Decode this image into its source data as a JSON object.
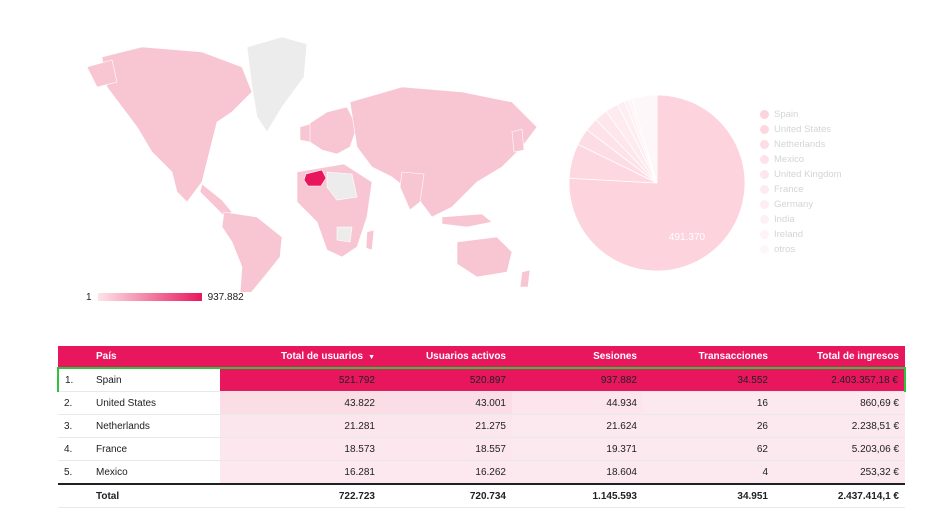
{
  "chart_data": [
    {
      "type": "map",
      "highlighted_region": "Spain",
      "scale": {
        "min": "1",
        "max": "937.882"
      },
      "colors": {
        "low": "#fde4ea",
        "high": "#e8175d",
        "no_data": "#ececec"
      }
    },
    {
      "type": "pie",
      "slice_label": "491.370",
      "legend": [
        "Spain",
        "United States",
        "Netherlands",
        "Mexico",
        "United Kingdom",
        "France",
        "Germany",
        "India",
        "Ireland",
        "otros"
      ],
      "slices": [
        {
          "label": "Spain",
          "value": 491370,
          "color": "#fdd3dd"
        },
        {
          "label": "United States",
          "value": 41270,
          "color": "#fdd8e1"
        },
        {
          "label": "Netherlands",
          "value": 20040,
          "color": "#fddde5"
        },
        {
          "label": "Mexico",
          "value": 15900,
          "color": "#fde2e9"
        },
        {
          "label": "United Kingdom",
          "value": 15600,
          "color": "#fde6ec"
        },
        {
          "label": "France",
          "value": 15500,
          "color": "#feebf0"
        },
        {
          "label": "Germany",
          "value": 9000,
          "color": "#feeef2"
        },
        {
          "label": "India",
          "value": 5000,
          "color": "#fef1f4"
        },
        {
          "label": "Ireland",
          "value": 4000,
          "color": "#fef4f7"
        },
        {
          "label": "otros",
          "value": 30000,
          "color": "#fef7f9"
        }
      ]
    },
    {
      "type": "table",
      "columns": [
        "",
        "País",
        "Total de usuarios",
        "Usuarios activos",
        "Sesiones",
        "Transacciones",
        "Total de ingresos"
      ],
      "sort_indicator": "▼",
      "rows": [
        [
          "1.",
          "Spain",
          "521.792",
          "520.897",
          "937.882",
          "34.552",
          "2.403.357,18 €"
        ],
        [
          "2.",
          "United States",
          "43.822",
          "43.001",
          "44.934",
          "16",
          "860,69 €"
        ],
        [
          "3.",
          "Netherlands",
          "21.281",
          "21.275",
          "21.624",
          "26",
          "2.238,51 €"
        ],
        [
          "4.",
          "France",
          "18.573",
          "18.557",
          "19.371",
          "62",
          "5.203,06 €"
        ],
        [
          "5.",
          "Mexico",
          "16.281",
          "16.262",
          "18.604",
          "4",
          "253,32 €"
        ]
      ],
      "total": [
        "",
        "Total",
        "722.723",
        "720.734",
        "1.145.593",
        "34.951",
        "2.437.414,1 €"
      ],
      "selected_row": 0,
      "colors": {
        "header": "#e8175d",
        "heat_high": "#e8175d",
        "heat_low": "#fdeff3",
        "selection": "#2fc140"
      }
    }
  ]
}
